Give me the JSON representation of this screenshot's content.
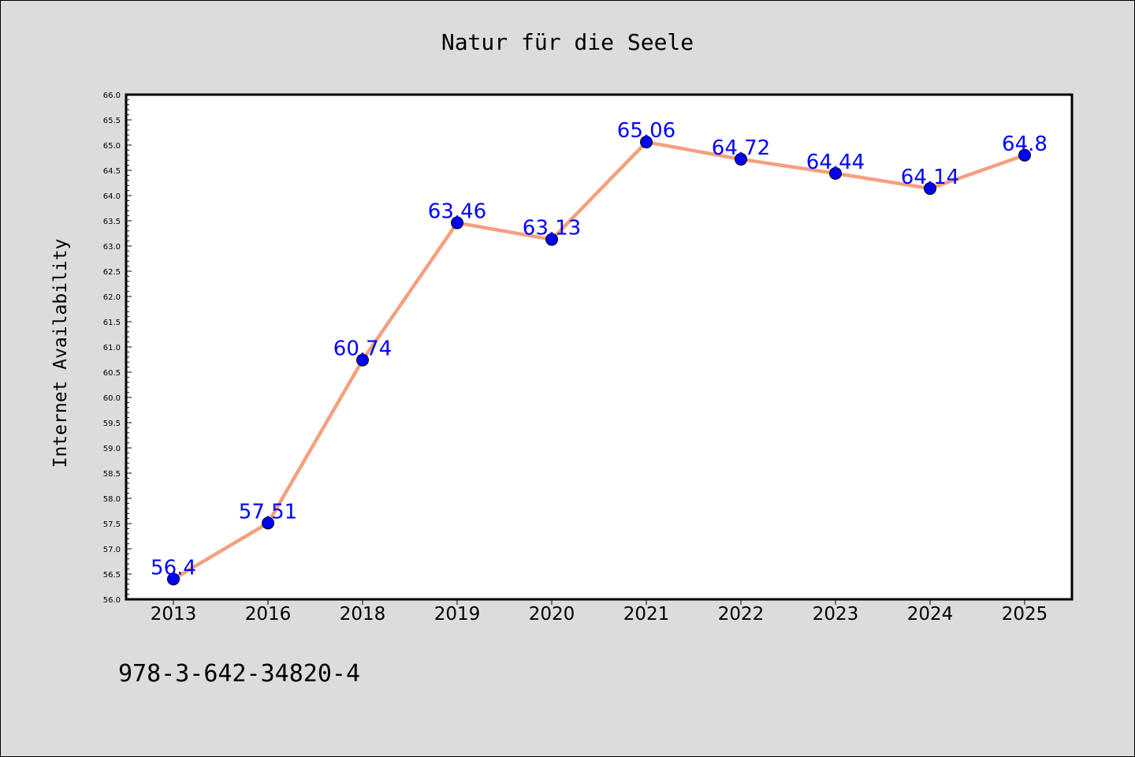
{
  "chart_data": {
    "type": "line",
    "title": "Natur für die Seele",
    "xlabel": "",
    "ylabel": "Internet Availability",
    "categories": [
      "2013",
      "2016",
      "2018",
      "2019",
      "2020",
      "2021",
      "2022",
      "2023",
      "2024",
      "2025"
    ],
    "values": [
      56.4,
      57.51,
      60.74,
      63.46,
      63.13,
      65.06,
      64.72,
      64.44,
      64.14,
      64.8
    ],
    "data_labels": [
      "56.4",
      "57.51",
      "60.74",
      "63.46",
      "63.13",
      "65.06",
      "64.72",
      "64.44",
      "64.14",
      "64.8"
    ],
    "ylim": [
      56.0,
      66.0
    ],
    "y_major_step": 0.5,
    "y_tick_labels": [
      "56.0",
      "56.5",
      "57.0",
      "57.5",
      "58.0",
      "58.5",
      "59.0",
      "59.5",
      "60.0",
      "60.5",
      "61.0",
      "61.5",
      "62.0",
      "62.5",
      "63.0",
      "63.5",
      "64.0",
      "64.5",
      "65.0",
      "65.5",
      "66.0"
    ],
    "grid": false,
    "legend": "none",
    "colors": {
      "line": "#f4a07e",
      "marker": "#0000ff",
      "data_label": "#0000ff",
      "plot_background": "#ffffff",
      "figure_background": "#dcdcdc"
    }
  },
  "footer": {
    "text": "978-3-642-34820-4"
  }
}
